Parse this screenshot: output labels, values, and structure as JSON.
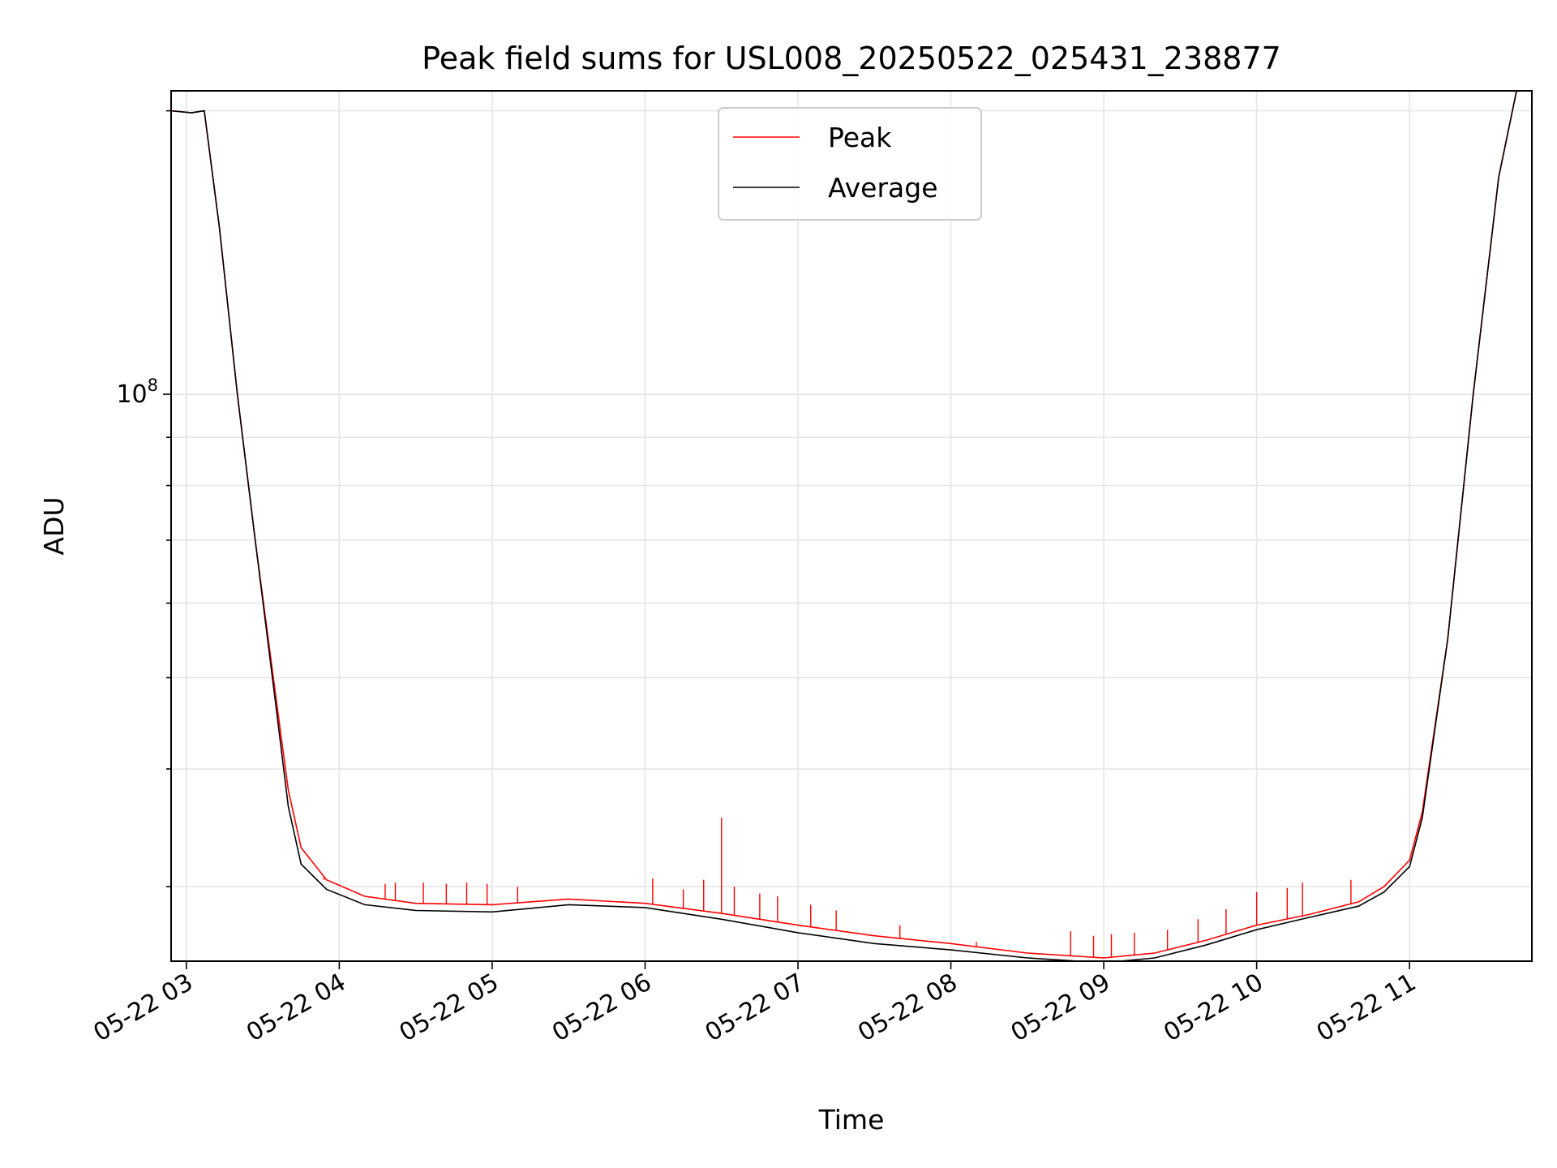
{
  "chart_data": {
    "type": "line",
    "title": "Peak field sums for USL008_20250522_025431_238877",
    "xlabel": "Time",
    "ylabel": "ADU",
    "y_scale": "log",
    "y_major_tick_labels": [
      {
        "value": 100000000,
        "base": "10",
        "exponent": "8"
      }
    ],
    "x_tick_labels": [
      "05-22 03",
      "05-22 04",
      "05-22 05",
      "05-22 06",
      "05-22 07",
      "05-22 08",
      "05-22 09",
      "05-22 10",
      "05-22 11"
    ],
    "x_tick_times": [
      "2025-05-22T03:00",
      "2025-05-22T04:00",
      "2025-05-22T05:00",
      "2025-05-22T06:00",
      "2025-05-22T07:00",
      "2025-05-22T08:00",
      "2025-05-22T09:00",
      "2025-05-22T10:00",
      "2025-05-22T11:00"
    ],
    "xlim": [
      "2025-05-22T02:54",
      "2025-05-22T11:48"
    ],
    "ylim": [
      25000000,
      210000000
    ],
    "grid": true,
    "legend": {
      "placement": "upper-center"
    },
    "series": [
      {
        "name": "Peak",
        "color": "#ff0000",
        "x": [
          "2025-05-22T02:54",
          "2025-05-22T03:02",
          "2025-05-22T03:07",
          "2025-05-22T03:13",
          "2025-05-22T03:20",
          "2025-05-22T03:27",
          "2025-05-22T03:35",
          "2025-05-22T03:40",
          "2025-05-22T03:45",
          "2025-05-22T03:55",
          "2025-05-22T04:10",
          "2025-05-22T04:30",
          "2025-05-22T05:00",
          "2025-05-22T05:30",
          "2025-05-22T06:00",
          "2025-05-22T06:30",
          "2025-05-22T07:00",
          "2025-05-22T07:30",
          "2025-05-22T08:00",
          "2025-05-22T08:30",
          "2025-05-22T09:00",
          "2025-05-22T09:20",
          "2025-05-22T09:40",
          "2025-05-22T10:00",
          "2025-05-22T10:20",
          "2025-05-22T10:40",
          "2025-05-22T10:50",
          "2025-05-22T11:00",
          "2025-05-22T11:05",
          "2025-05-22T11:15",
          "2025-05-22T11:25",
          "2025-05-22T11:35",
          "2025-05-22T11:42",
          "2025-05-22T11:48"
        ],
        "y": [
          200000000,
          199000000,
          200000000,
          150000000,
          100000000,
          70000000,
          48000000,
          38000000,
          33000000,
          30500000,
          29300000,
          28800000,
          28700000,
          29100000,
          28800000,
          28100000,
          27300000,
          26600000,
          26100000,
          25500000,
          25200000,
          25500000,
          26300000,
          27300000,
          28000000,
          28900000,
          30000000,
          32000000,
          36000000,
          55000000,
          100000000,
          170000000,
          210000000,
          210000000
        ],
        "spikes": [
          {
            "x": "2025-05-22T03:54",
            "y": 30500000
          },
          {
            "x": "2025-05-22T04:18",
            "y": 30200000
          },
          {
            "x": "2025-05-22T04:22",
            "y": 30300000
          },
          {
            "x": "2025-05-22T04:33",
            "y": 30300000
          },
          {
            "x": "2025-05-22T04:42",
            "y": 30200000
          },
          {
            "x": "2025-05-22T04:50",
            "y": 30300000
          },
          {
            "x": "2025-05-22T04:58",
            "y": 30200000
          },
          {
            "x": "2025-05-22T05:10",
            "y": 30000000
          },
          {
            "x": "2025-05-22T06:03",
            "y": 30600000
          },
          {
            "x": "2025-05-22T06:15",
            "y": 29800000
          },
          {
            "x": "2025-05-22T06:23",
            "y": 30500000
          },
          {
            "x": "2025-05-22T06:30",
            "y": 35500000
          },
          {
            "x": "2025-05-22T06:35",
            "y": 30000000
          },
          {
            "x": "2025-05-22T06:45",
            "y": 29500000
          },
          {
            "x": "2025-05-22T06:52",
            "y": 29300000
          },
          {
            "x": "2025-05-22T07:05",
            "y": 28700000
          },
          {
            "x": "2025-05-22T07:15",
            "y": 28300000
          },
          {
            "x": "2025-05-22T07:40",
            "y": 27300000
          },
          {
            "x": "2025-05-22T08:10",
            "y": 26200000
          },
          {
            "x": "2025-05-22T08:47",
            "y": 26900000
          },
          {
            "x": "2025-05-22T08:56",
            "y": 26600000
          },
          {
            "x": "2025-05-22T09:03",
            "y": 26700000
          },
          {
            "x": "2025-05-22T09:12",
            "y": 26800000
          },
          {
            "x": "2025-05-22T09:25",
            "y": 27000000
          },
          {
            "x": "2025-05-22T09:37",
            "y": 27700000
          },
          {
            "x": "2025-05-22T09:48",
            "y": 28400000
          },
          {
            "x": "2025-05-22T10:00",
            "y": 29600000
          },
          {
            "x": "2025-05-22T10:12",
            "y": 29900000
          },
          {
            "x": "2025-05-22T10:18",
            "y": 30300000
          },
          {
            "x": "2025-05-22T10:37",
            "y": 30500000
          }
        ]
      },
      {
        "name": "Average",
        "color": "#000000",
        "x": [
          "2025-05-22T02:54",
          "2025-05-22T03:02",
          "2025-05-22T03:07",
          "2025-05-22T03:13",
          "2025-05-22T03:20",
          "2025-05-22T03:27",
          "2025-05-22T03:35",
          "2025-05-22T03:40",
          "2025-05-22T03:45",
          "2025-05-22T03:55",
          "2025-05-22T04:10",
          "2025-05-22T04:30",
          "2025-05-22T05:00",
          "2025-05-22T05:30",
          "2025-05-22T06:00",
          "2025-05-22T06:30",
          "2025-05-22T07:00",
          "2025-05-22T07:30",
          "2025-05-22T08:00",
          "2025-05-22T08:30",
          "2025-05-22T09:00",
          "2025-05-22T09:20",
          "2025-05-22T09:40",
          "2025-05-22T10:00",
          "2025-05-22T10:20",
          "2025-05-22T10:40",
          "2025-05-22T10:50",
          "2025-05-22T11:00",
          "2025-05-22T11:05",
          "2025-05-22T11:15",
          "2025-05-22T11:25",
          "2025-05-22T11:35",
          "2025-05-22T11:42",
          "2025-05-22T11:48"
        ],
        "y": [
          200000000,
          199000000,
          200000000,
          150000000,
          100000000,
          70000000,
          47000000,
          36500000,
          31700000,
          29800000,
          28700000,
          28300000,
          28200000,
          28700000,
          28500000,
          27700000,
          26800000,
          26100000,
          25700000,
          25200000,
          24900000,
          25200000,
          26000000,
          27000000,
          27800000,
          28600000,
          29600000,
          31500000,
          35500000,
          55000000,
          100000000,
          170000000,
          210000000,
          210000000
        ]
      }
    ]
  }
}
